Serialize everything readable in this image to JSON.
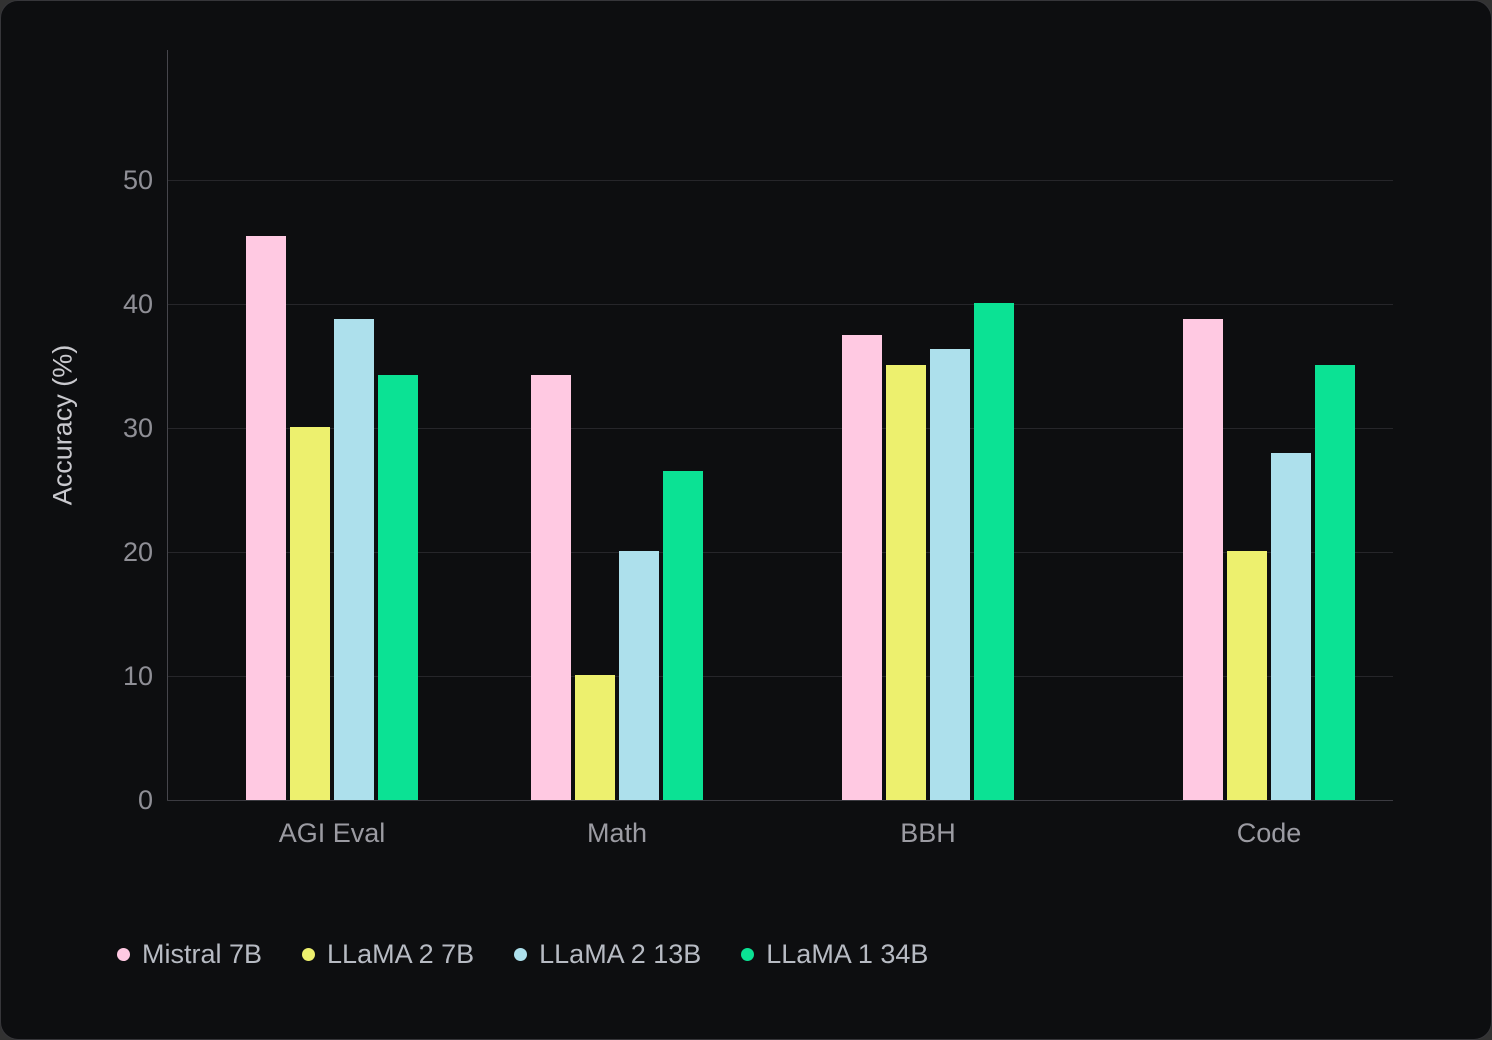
{
  "theme": {
    "panel_background": "#0d0e10",
    "outer_background": "#323232",
    "grid_color": "#26262a",
    "axis_color": "#46464c",
    "tick_label_color": "#8f8f96",
    "category_label_color": "#9b9ba2",
    "legend_label_color": "#b7bbc3",
    "axis_title_color": "#c9c9ce"
  },
  "chart_data": {
    "type": "bar",
    "title": "",
    "categories": [
      "AGI Eval",
      "Math",
      "BBH",
      "Code"
    ],
    "series": [
      {
        "name": "Mistral 7B",
        "color": "#ffc9e2",
        "values": [
          45.5,
          34.3,
          37.5,
          38.8
        ]
      },
      {
        "name": "LLaMA 2 7B",
        "color": "#edf06e",
        "values": [
          30.1,
          10.1,
          35.1,
          20.1
        ]
      },
      {
        "name": "LLaMA 2 13B",
        "color": "#ade0ec",
        "values": [
          38.8,
          20.1,
          36.4,
          28.0
        ]
      },
      {
        "name": "LLaMA 1 34B",
        "color": "#0be294",
        "values": [
          34.3,
          26.5,
          40.1,
          35.1
        ]
      }
    ],
    "xlabel": "",
    "ylabel": "Accuracy (%)",
    "yticks": [
      0,
      10,
      20,
      30,
      40,
      50
    ],
    "ylim": [
      0,
      60
    ],
    "grid": true,
    "legend_position": "bottom-left"
  }
}
